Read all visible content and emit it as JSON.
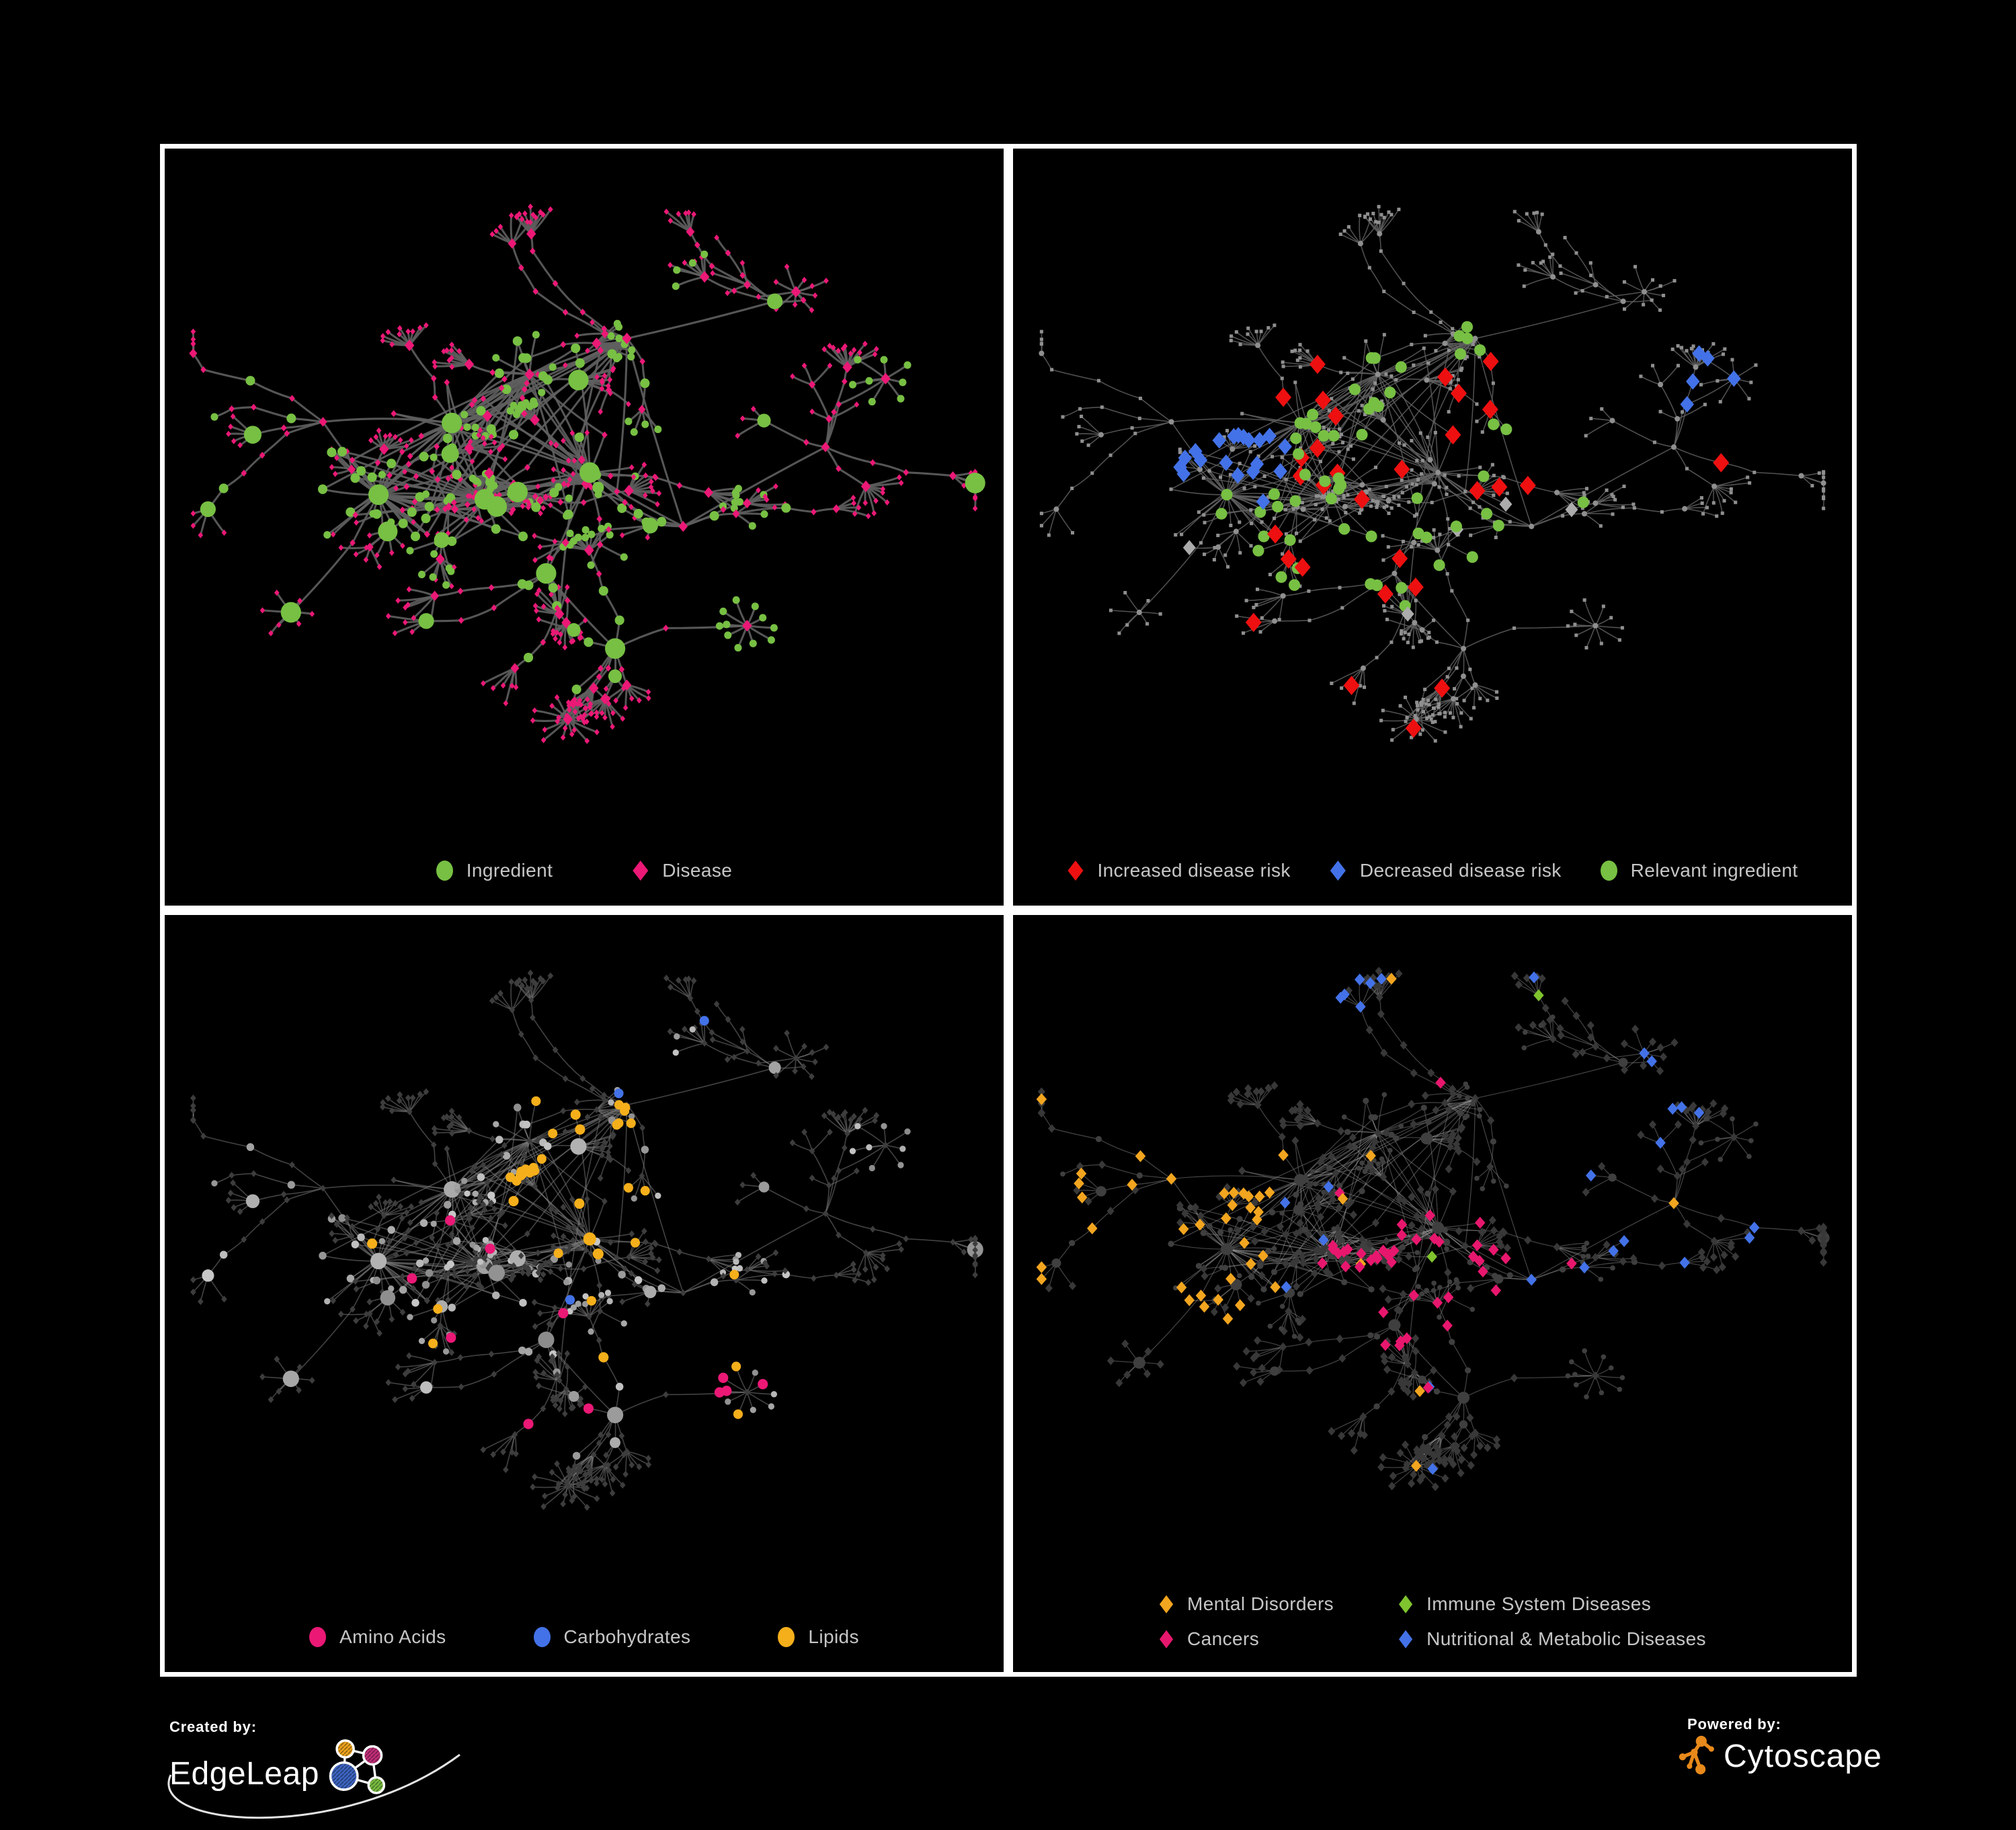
{
  "branding": {
    "created_by_label": "Created by:",
    "edgeleap_name": "EdgeLeap",
    "powered_by_label": "Powered by:",
    "cytoscape_name": "Cytoscape",
    "edgeleap_logo_colors": {
      "orange": "#F2A71F",
      "magenta": "#C52F7B",
      "blue": "#3E66C4",
      "green": "#7CC142"
    },
    "cytoscape_orange": "#E8891B"
  },
  "panels": {
    "ingredient_disease": {
      "legend": [
        {
          "label": "Ingredient",
          "shape": "circle",
          "color": "#77C043"
        },
        {
          "label": "Disease",
          "shape": "diamond",
          "color": "#EB1876"
        }
      ],
      "style": {
        "edge_color": "#5F5F5F",
        "edge_width": 3,
        "edge_opacity": 0.9
      },
      "highlight_seed": 101
    },
    "disease_risk": {
      "legend": [
        {
          "label": "Increased disease risk",
          "shape": "diamond",
          "color": "#EE1010"
        },
        {
          "label": "Decreased disease risk",
          "shape": "diamond",
          "color": "#4372E8"
        },
        {
          "label": "Relevant ingredient",
          "shape": "circle",
          "color": "#77C043"
        }
      ],
      "style": {
        "edge_color": "#606060",
        "edge_width": 1.5,
        "edge_opacity": 0.85,
        "node_color": "#8F8F8F",
        "neutral_color": "#ACACAC"
      },
      "highlight_seed": 202
    },
    "nutrient_classes": {
      "legend": [
        {
          "label": "Amino Acids",
          "shape": "circle",
          "color": "#EB1876"
        },
        {
          "label": "Carbohydrates",
          "shape": "circle",
          "color": "#4372E8"
        },
        {
          "label": "Lipids",
          "shape": "circle",
          "color": "#F5AF1B"
        }
      ],
      "style": {
        "edge_color": "#787878",
        "edge_width": 1.6,
        "edge_opacity": 0.55,
        "diamond_color": "#3D3D3D"
      },
      "highlight_seed": 303
    },
    "disease_categories": {
      "legend": [
        {
          "label": "Mental Disorders",
          "shape": "diamond",
          "color": "#F2A51F"
        },
        {
          "label": "Immune System Diseases",
          "shape": "diamond",
          "color": "#7FC42E"
        },
        {
          "label": "Cancers",
          "shape": "diamond",
          "color": "#E8176E"
        },
        {
          "label": "Nutritional & Metabolic Diseases",
          "shape": "diamond",
          "color": "#4372E8"
        }
      ],
      "style": {
        "edge_color": "#9A9A9A",
        "edge_width": 1.2,
        "edge_opacity": 0.45,
        "diamond_color": "#383838",
        "circle_color": "#3F3F3F"
      },
      "highlight_seed": 404
    }
  },
  "network": {
    "layout_seed": 20,
    "approx_node_count": 700
  }
}
